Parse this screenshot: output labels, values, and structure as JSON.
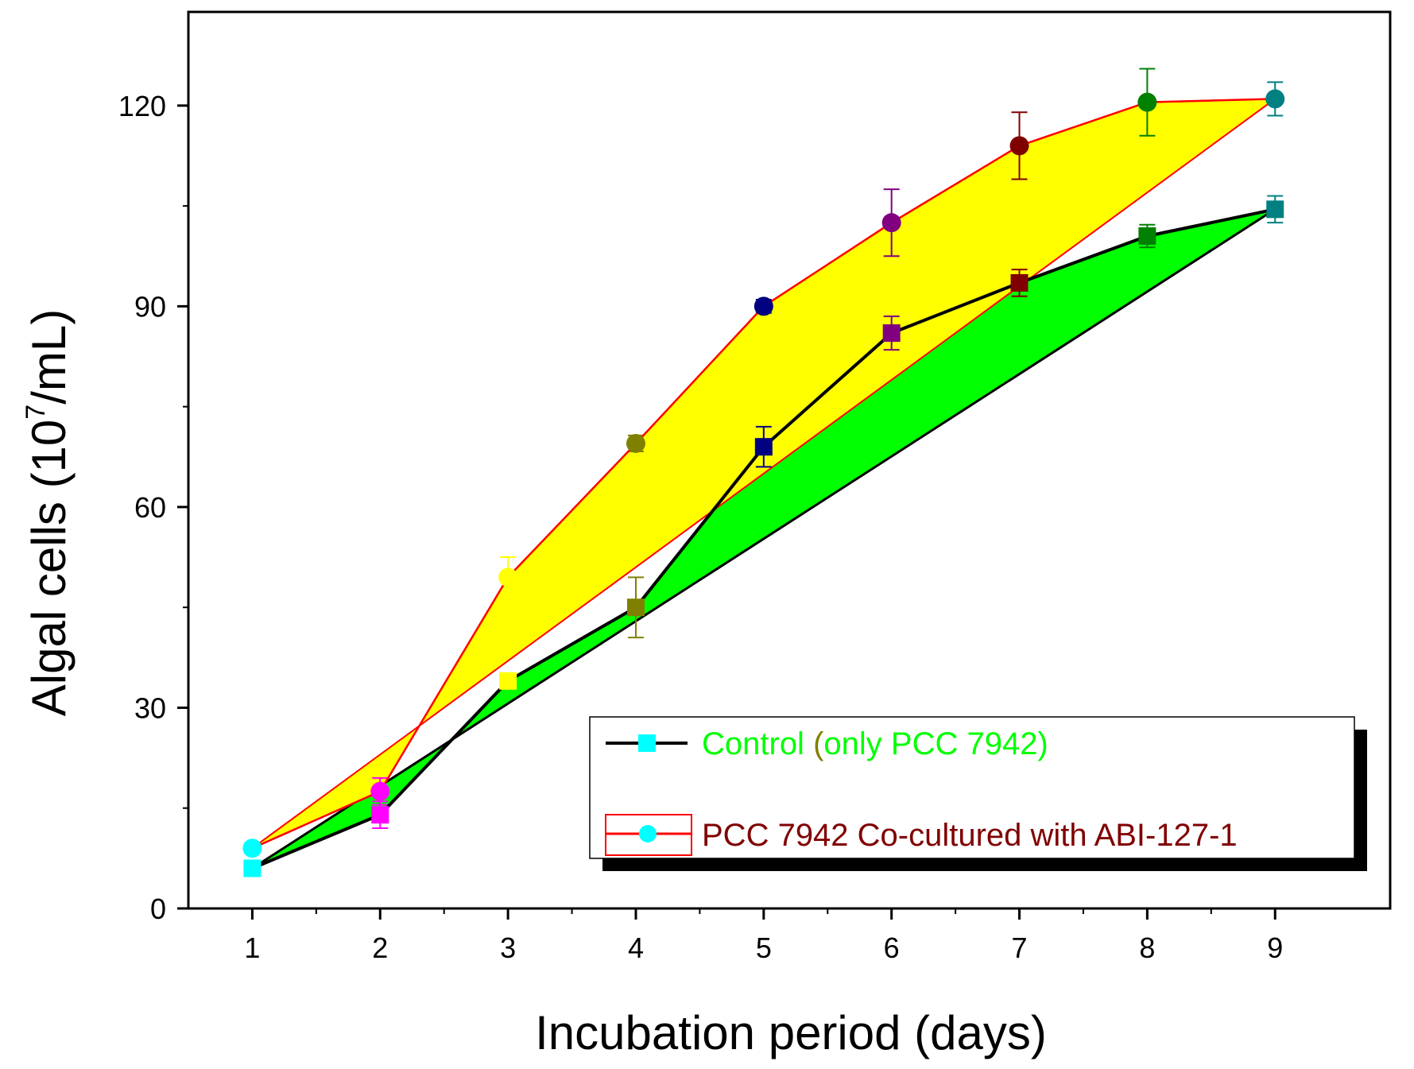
{
  "chart_data": {
    "type": "line",
    "title": "",
    "xlabel": "Incubation period (days)",
    "ylabel_main": "Algal cells (10",
    "ylabel_sup": "7",
    "ylabel_end": "/mL)",
    "xlim": [
      0.5,
      9.9
    ],
    "ylim": [
      0,
      134
    ],
    "x": [
      1,
      2,
      3,
      4,
      5,
      6,
      7,
      8,
      9
    ],
    "xticks": [
      "1",
      "2",
      "3",
      "4",
      "5",
      "6",
      "7",
      "8",
      "9"
    ],
    "yticks": [
      0,
      30,
      60,
      90,
      120
    ],
    "ytick_labels": [
      "0",
      "30",
      "60",
      "90",
      "120"
    ],
    "series": [
      {
        "name": "Control (only PCC 7942)",
        "line_color": "#000000",
        "marker": "square",
        "fill_color": "#00ff00",
        "values": [
          6,
          14,
          34,
          45,
          69,
          86,
          93.5,
          100.5,
          104.5
        ],
        "errors": [
          0.8,
          2,
          1,
          4.5,
          3,
          2.5,
          2,
          1.7,
          2
        ],
        "marker_colors": [
          "#00ffff",
          "#ff00ff",
          "#ffff00",
          "#808000",
          "#000080",
          "#800080",
          "#800000",
          "#008000",
          "#008080"
        ]
      },
      {
        "name": "PCC 7942 Co-cultured with ABI-127-1",
        "line_color": "#ff0000",
        "marker": "circle",
        "fill_color": "#ffff00",
        "values": [
          9,
          17.5,
          49.5,
          69.5,
          90,
          102.5,
          114,
          120.5,
          121
        ],
        "errors": [
          0.8,
          2,
          3,
          1.2,
          1,
          5,
          5,
          5,
          2.5
        ],
        "marker_colors": [
          "#00ffff",
          "#ff00ff",
          "#ffff00",
          "#808000",
          "#000080",
          "#800080",
          "#800000",
          "#008000",
          "#008080"
        ]
      }
    ],
    "legend": {
      "position": "bottom-right",
      "entry1_part1": "Control",
      "entry1_part2": " (",
      "entry1_part3": "only PCC 7942)",
      "entry2": "PCC 7942 Co-cultured with ABI-127-1",
      "entry1_color_main": "#00ff00",
      "entry1_color_paren": "#808000",
      "entry2_color": "#800000",
      "marker1_color": "#00ffff",
      "marker2_color": "#00ffff"
    }
  }
}
